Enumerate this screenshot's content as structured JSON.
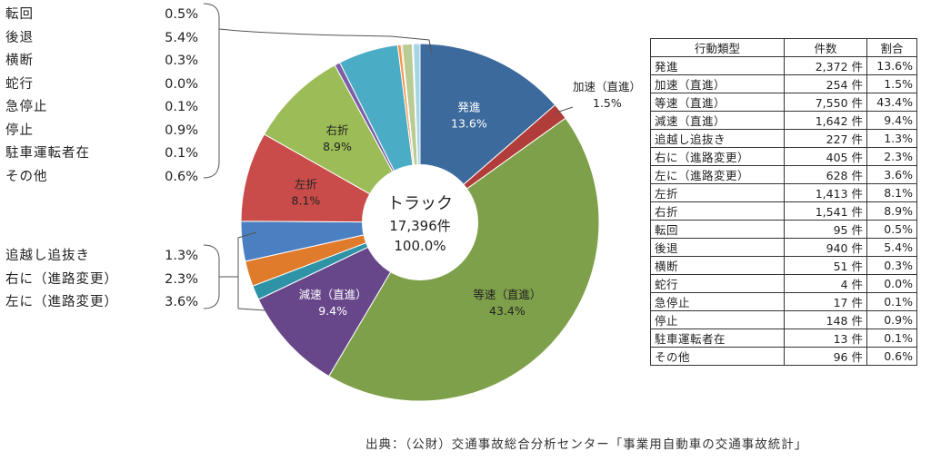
{
  "chart_data": {
    "type": "pie",
    "center": {
      "line1": "トラック",
      "line2": "17,396件",
      "line3": "100.0%"
    },
    "slices": [
      {
        "name": "発進",
        "label": "発進",
        "pct_label": "13.6%",
        "value": 13.6,
        "color": "#3c6a9c",
        "text_color": "#ffffff"
      },
      {
        "name": "加速（直進）",
        "label": "加速（直進）",
        "pct_label": "1.5%",
        "value": 1.5,
        "color": "#b03d3a",
        "text_color": "#222222"
      },
      {
        "name": "等速（直進）",
        "label": "等速（直進）",
        "pct_label": "43.4%",
        "value": 43.4,
        "color": "#7fa04a",
        "text_color": "#222222"
      },
      {
        "name": "減速（直進）",
        "label": "減速（直進）",
        "pct_label": "9.4%",
        "value": 9.4,
        "color": "#67478a",
        "text_color": "#ffffff"
      },
      {
        "name": "追越し追抜き",
        "value": 1.3,
        "color": "#2e93a6"
      },
      {
        "name": "右に（進路変更）",
        "value": 2.3,
        "color": "#e07b2b"
      },
      {
        "name": "左に（進路変更）",
        "value": 3.6,
        "color": "#4a7fc2"
      },
      {
        "name": "左折",
        "label": "左折",
        "pct_label": "8.1%",
        "value": 8.1,
        "color": "#c94c4a",
        "text_color": "#222222"
      },
      {
        "name": "右折",
        "label": "右折",
        "pct_label": "8.9%",
        "value": 8.9,
        "color": "#9bbc56",
        "text_color": "#222222"
      },
      {
        "name": "転回",
        "value": 0.5,
        "color": "#7b5ea7"
      },
      {
        "name": "後退",
        "value": 5.4,
        "color": "#4bacc6"
      },
      {
        "name": "横断",
        "value": 0.3,
        "color": "#f79646"
      },
      {
        "name": "蛇行",
        "value": 0.0,
        "color": "#3c6a9c"
      },
      {
        "name": "急停止",
        "value": 0.1,
        "color": "#c0504d"
      },
      {
        "name": "停止",
        "value": 0.9,
        "color": "#b9cc94"
      },
      {
        "name": "駐車運転者在",
        "value": 0.1,
        "color": "#b3a2c7"
      },
      {
        "name": "その他",
        "value": 0.6,
        "color": "#a5d5e2"
      }
    ]
  },
  "legend_top": [
    {
      "label": "転回",
      "pct": "0.5%"
    },
    {
      "label": "後退",
      "pct": "5.4%"
    },
    {
      "label": "横断",
      "pct": "0.3%"
    },
    {
      "label": "蛇行",
      "pct": "0.0%"
    },
    {
      "label": "急停止",
      "pct": "0.1%"
    },
    {
      "label": "停止",
      "pct": "0.9%"
    },
    {
      "label": "駐車運転者在",
      "pct": "0.1%"
    },
    {
      "label": "その他",
      "pct": "0.6%"
    }
  ],
  "legend_bottom": [
    {
      "label": "追越し追抜き",
      "pct": "1.3%"
    },
    {
      "label": "右に（進路変更）",
      "pct": "2.3%"
    },
    {
      "label": "左に（進路変更）",
      "pct": "3.6%"
    }
  ],
  "table": {
    "headers": [
      "行動類型",
      "件数",
      "割合"
    ],
    "rows": [
      {
        "type": "発進",
        "count": "2,372 件",
        "share": "13.6%"
      },
      {
        "type": "加速（直進）",
        "count": "254 件",
        "share": "1.5%"
      },
      {
        "type": "等速（直進）",
        "count": "7,550 件",
        "share": "43.4%"
      },
      {
        "type": "減速（直進）",
        "count": "1,642 件",
        "share": "9.4%"
      },
      {
        "type": "追越し追抜き",
        "count": "227 件",
        "share": "1.3%"
      },
      {
        "type": "右に（進路変更）",
        "count": "405 件",
        "share": "2.3%"
      },
      {
        "type": "左に（進路変更）",
        "count": "628 件",
        "share": "3.6%"
      },
      {
        "type": "左折",
        "count": "1,413 件",
        "share": "8.1%"
      },
      {
        "type": "右折",
        "count": "1,541 件",
        "share": "8.9%"
      },
      {
        "type": "転回",
        "count": "95 件",
        "share": "0.5%"
      },
      {
        "type": "後退",
        "count": "940 件",
        "share": "5.4%"
      },
      {
        "type": "横断",
        "count": "51 件",
        "share": "0.3%"
      },
      {
        "type": "蛇行",
        "count": "4 件",
        "share": "0.0%"
      },
      {
        "type": "急停止",
        "count": "17 件",
        "share": "0.1%"
      },
      {
        "type": "停止",
        "count": "148 件",
        "share": "0.9%"
      },
      {
        "type": "駐車運転者在",
        "count": "13 件",
        "share": "0.1%"
      },
      {
        "type": "その他",
        "count": "96 件",
        "share": "0.6%"
      }
    ]
  },
  "source": "出典：（公財）交通事故総合分析センター「事業用自動車の交通事故統計」"
}
